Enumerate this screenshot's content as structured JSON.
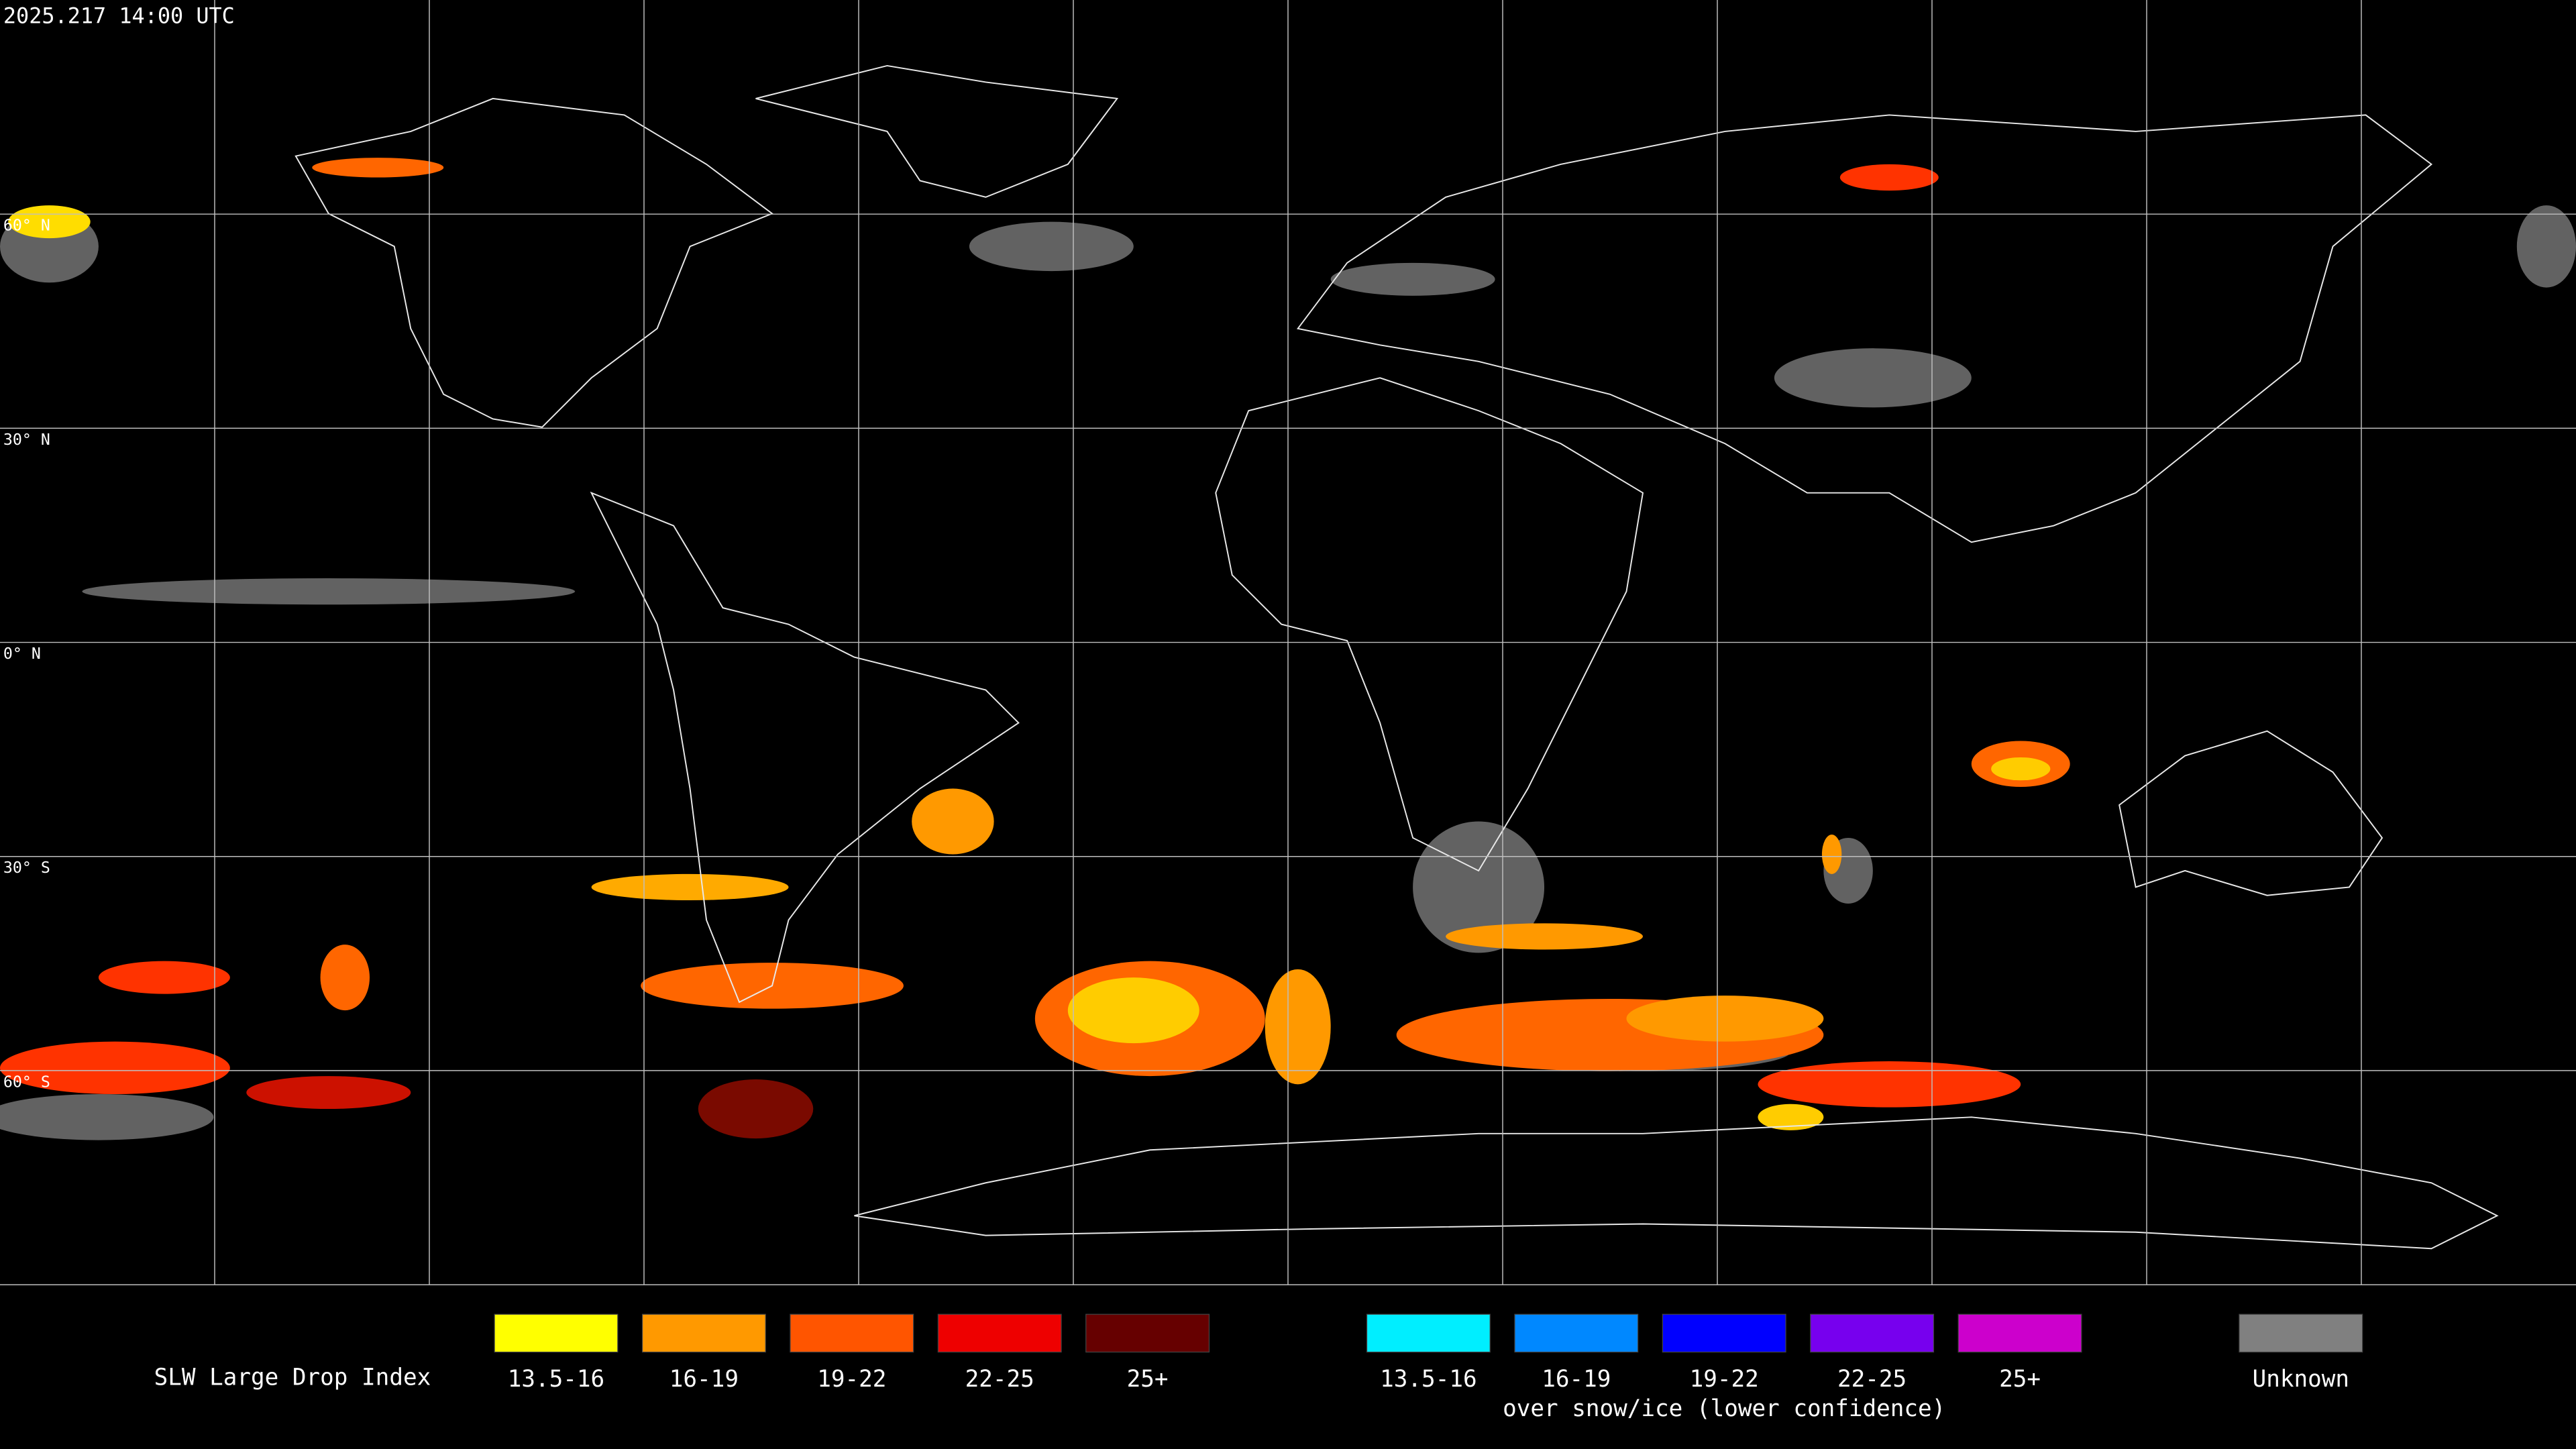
{
  "header": {
    "timestamp": "2025.217 14:00 UTC"
  },
  "map": {
    "lat_labels": [
      "60° N",
      "30° N",
      "0° N",
      "30° S",
      "60° S"
    ]
  },
  "legend": {
    "title": "SLW Large Drop Index",
    "groups": [
      {
        "items": [
          {
            "label": "13.5-16",
            "color": "#ffff00"
          },
          {
            "label": "16-19",
            "color": "#ff9900"
          },
          {
            "label": "19-22",
            "color": "#ff5500"
          },
          {
            "label": "22-25",
            "color": "#ee0000"
          },
          {
            "label": "25+",
            "color": "#660000"
          }
        ]
      },
      {
        "items": [
          {
            "label": "13.5-16",
            "color": "#00eeff"
          },
          {
            "label": "16-19",
            "color": "#0088ff"
          },
          {
            "label": "19-22",
            "color": "#0000ff"
          },
          {
            "label": "22-25",
            "color": "#7700ee"
          },
          {
            "label": "25+",
            "color": "#cc00cc"
          }
        ],
        "caption": "over snow/ice (lower confidence)"
      },
      {
        "items": [
          {
            "label": "Unknown",
            "color": "#808080"
          }
        ]
      }
    ]
  }
}
